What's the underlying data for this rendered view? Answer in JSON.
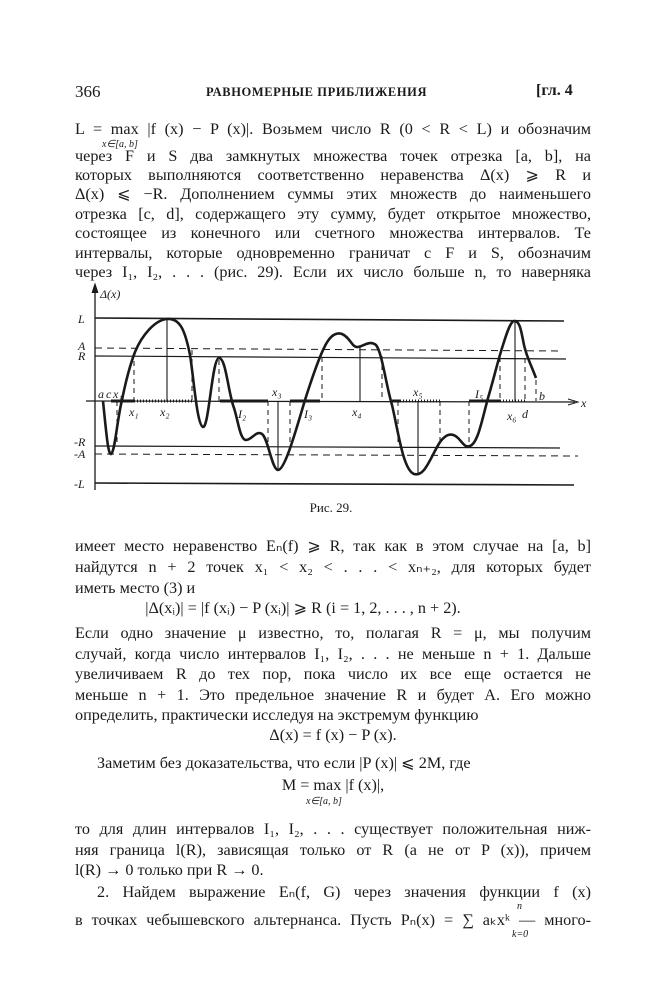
{
  "header": {
    "page_number": "366",
    "running_title": "РАВНОМЕРНЫЕ ПРИБЛИЖЕНИЯ",
    "chapter": "[гл. 4"
  },
  "para1": [
    "L = max |f (x) − P (x)|. Возьмем число R (0 < R < L) и обозначим",
    "через  F  и  S  два замкнутых множества точек отрезка [a, b], на",
    "которых выполняются соответственно неравенства Δ(x) ⩾ R и",
    "Δ(x) ⩽ −R. Дополнением суммы этих множеств до наименьшего",
    "отрезка [c, d], содержащего эту сумму, будет открытое множество,",
    "состоящее из конечного или счетного множества интервалов. Те",
    "интервалы, которые одновременно граничат с F и S, обозначим",
    "через I₁, I₂, . . .  (рис. 29). Если их число больше n, то наверняка"
  ],
  "para1_sub": "x∈[a, b]",
  "figure": {
    "caption": "Рис. 29.",
    "y_axis_label": "Δ(x)",
    "x_axis_label": "x",
    "level_labels": [
      "L",
      "A",
      "R",
      "-R",
      "-A",
      "-L"
    ],
    "point_labels": [
      "a",
      "c",
      "x₁",
      "x₁",
      "x₂",
      "I₂",
      "x₃",
      "I₃",
      "x₄",
      "x₅",
      "I₅",
      "x₆",
      "d",
      "b"
    ]
  },
  "para2": [
    "имеет место неравенство Eₙ(f) ⩾ R, так как в этом случае на [a, b]",
    "найдутся  n + 2  точек  x₁ < x₂ < . . . < xₙ₊₂,  для которых будет",
    "иметь место (3) и"
  ],
  "formula1": "|Δ(xᵢ)| = |f (xᵢ) − P (xᵢ)| ⩾ R        (i = 1, 2, . . . , n + 2).",
  "para3": [
    "Если одно значение μ известно, то, полагая R = μ, мы получим",
    "случай, когда число интервалов I₁, I₂, . . . не меньше n + 1. Дальше",
    "увеличиваем R до тех пор, пока число их все еще остается не",
    "меньше n + 1. Это предельное значение R и будет A. Его можно",
    "определить, практически исследуя на экстремум функцию"
  ],
  "formula2": "Δ(x) = f (x) − P (x).",
  "para4": "Заметим без доказательства, что если |P (x)| ⩽ 2M, где",
  "formula3": "M = max |f (x)|,",
  "formula3_sub": "x∈[a, b]",
  "para5": [
    "то для длин интервалов I₁, I₂, . . . существует положительная ниж-",
    "няя граница l(R), зависящая только от R (а не от P (x)), причем",
    "l(R) → 0 только при R → 0."
  ],
  "para6": [
    "2. Найдем выражение Eₙ(f, G) через значения функции f (x)",
    "в точках чебышевского альтернанса. Пусть Pₙ(x) = ∑ aₖxᵏ — много-"
  ],
  "sum_limits": {
    "upper": "n",
    "lower": "k=0"
  }
}
